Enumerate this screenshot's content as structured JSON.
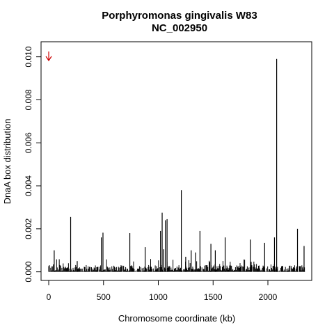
{
  "chart_data": {
    "type": "bar",
    "title": "Porphyromonas gingivalis W83",
    "subtitle": "NC_002950",
    "xlabel": "Chromosome coordinate (kb)",
    "ylabel": "DnaA box distribution",
    "xlim": [
      -70,
      2400
    ],
    "ylim": [
      -0.0004,
      0.0107
    ],
    "xticks": [
      0,
      500,
      1000,
      1500,
      2000
    ],
    "yticks": [
      0.0,
      0.002,
      0.004,
      0.006,
      0.008,
      0.01
    ],
    "ytick_labels": [
      "0.000",
      "0.002",
      "0.004",
      "0.006",
      "0.008",
      "0.010"
    ],
    "grid": false,
    "marker": {
      "type": "origin-arrow",
      "x": 0,
      "color": "#cc0000"
    },
    "bars": [
      {
        "x": 50,
        "y": 0.001
      },
      {
        "x": 200,
        "y": 0.00255
      },
      {
        "x": 260,
        "y": 0.0005
      },
      {
        "x": 480,
        "y": 0.0016
      },
      {
        "x": 495,
        "y": 0.00182
      },
      {
        "x": 740,
        "y": 0.0018
      },
      {
        "x": 880,
        "y": 0.00115
      },
      {
        "x": 1020,
        "y": 0.0019
      },
      {
        "x": 1035,
        "y": 0.00275
      },
      {
        "x": 1050,
        "y": 0.00105
      },
      {
        "x": 1065,
        "y": 0.0024
      },
      {
        "x": 1080,
        "y": 0.00245
      },
      {
        "x": 1210,
        "y": 0.0038
      },
      {
        "x": 1250,
        "y": 0.0007
      },
      {
        "x": 1300,
        "y": 0.001
      },
      {
        "x": 1340,
        "y": 0.0009
      },
      {
        "x": 1380,
        "y": 0.0019
      },
      {
        "x": 1480,
        "y": 0.0013
      },
      {
        "x": 1520,
        "y": 0.001
      },
      {
        "x": 1610,
        "y": 0.0016
      },
      {
        "x": 1840,
        "y": 0.0015
      },
      {
        "x": 1970,
        "y": 0.00135
      },
      {
        "x": 2060,
        "y": 0.0016
      },
      {
        "x": 2080,
        "y": 0.0099
      },
      {
        "x": 2270,
        "y": 0.002
      },
      {
        "x": 2330,
        "y": 0.0012
      }
    ],
    "noise": {
      "x_range": [
        0,
        2340
      ],
      "max_y": 0.0006,
      "typical_y": 0.0002,
      "step": 6
    }
  }
}
